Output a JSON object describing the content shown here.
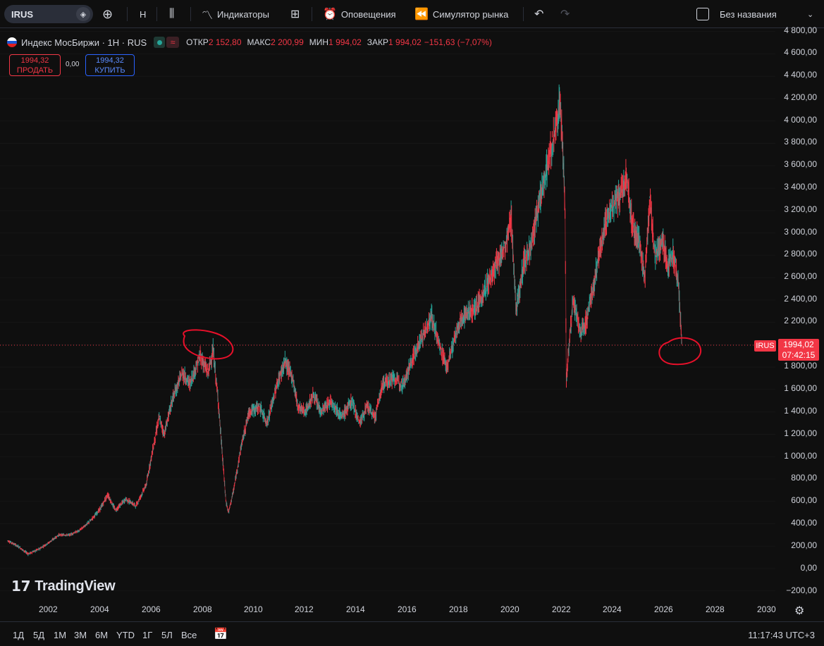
{
  "toolbar": {
    "symbol": "IRUS",
    "interval": "H",
    "indicators_label": "Индикаторы",
    "alerts_label": "Оповещения",
    "replay_label": "Симулятор рынка",
    "layout_name": "Без названия"
  },
  "legend": {
    "title": "Индекс МосБиржи · 1Н · RUS",
    "open_key": "ОТКР",
    "open_val": "2 152,80",
    "high_key": "МАКС",
    "high_val": "2 200,99",
    "low_key": "МИН",
    "low_val": "1 994,02",
    "close_key": "ЗАКР",
    "close_val": "1 994,02",
    "change": "−151,63 (−7,07%)"
  },
  "trade": {
    "sell_price": "1994,32",
    "sell_label": "ПРОДАТЬ",
    "spread": "0,00",
    "buy_price": "1994,32",
    "buy_label": "КУПИТЬ"
  },
  "price_axis": {
    "labels": [
      "4 800,00",
      "4 600,00",
      "4 400,00",
      "4 200,00",
      "4 000,00",
      "3 800,00",
      "3 600,00",
      "3 400,00",
      "3 200,00",
      "3 000,00",
      "2 800,00",
      "2 600,00",
      "2 400,00",
      "2 200,00",
      "1 800,00",
      "1 600,00",
      "1 400,00",
      "1 200,00",
      "1 000,00",
      "800,00",
      "600,00",
      "400,00",
      "200,00",
      "0,00",
      "−200,00"
    ],
    "last_price": "1994,02",
    "countdown": "07:42:15",
    "symbol_tag": "IRUS"
  },
  "time_axis": {
    "years": [
      "2002",
      "2004",
      "2006",
      "2008",
      "2010",
      "2012",
      "2014",
      "2016",
      "2018",
      "2020",
      "2022",
      "2024",
      "2026",
      "2028",
      "2030"
    ]
  },
  "watermark": "TradingView",
  "bottom": {
    "ranges": [
      "1Д",
      "5Д",
      "1М",
      "3М",
      "6М",
      "YTD",
      "1Г",
      "5Л",
      "Все"
    ],
    "clock": "11:17:43 UTC+3"
  },
  "colors": {
    "up": "#26a69a",
    "down": "#f23645",
    "annotation": "#e8102a"
  },
  "chart_data": {
    "type": "line",
    "x_unit": "year",
    "y_range": [
      -200,
      4800
    ],
    "points": [
      [
        2000.4,
        250
      ],
      [
        2000.8,
        200
      ],
      [
        2001.2,
        130
      ],
      [
        2001.6,
        170
      ],
      [
        2002.0,
        230
      ],
      [
        2002.4,
        300
      ],
      [
        2002.8,
        300
      ],
      [
        2003.2,
        340
      ],
      [
        2003.6,
        420
      ],
      [
        2004.0,
        530
      ],
      [
        2004.3,
        660
      ],
      [
        2004.6,
        520
      ],
      [
        2005.0,
        620
      ],
      [
        2005.4,
        560
      ],
      [
        2005.8,
        750
      ],
      [
        2006.0,
        1000
      ],
      [
        2006.3,
        1350
      ],
      [
        2006.5,
        1200
      ],
      [
        2006.8,
        1500
      ],
      [
        2007.2,
        1750
      ],
      [
        2007.5,
        1650
      ],
      [
        2007.9,
        1900
      ],
      [
        2008.2,
        1750
      ],
      [
        2008.4,
        1950
      ],
      [
        2008.6,
        1500
      ],
      [
        2008.9,
        600
      ],
      [
        2009.0,
        500
      ],
      [
        2009.2,
        700
      ],
      [
        2009.5,
        1100
      ],
      [
        2009.8,
        1400
      ],
      [
        2010.2,
        1450
      ],
      [
        2010.5,
        1300
      ],
      [
        2010.9,
        1650
      ],
      [
        2011.2,
        1850
      ],
      [
        2011.5,
        1700
      ],
      [
        2011.7,
        1450
      ],
      [
        2012.0,
        1400
      ],
      [
        2012.3,
        1550
      ],
      [
        2012.6,
        1400
      ],
      [
        2013.0,
        1500
      ],
      [
        2013.4,
        1350
      ],
      [
        2013.8,
        1500
      ],
      [
        2014.1,
        1300
      ],
      [
        2014.4,
        1450
      ],
      [
        2014.7,
        1350
      ],
      [
        2015.0,
        1650
      ],
      [
        2015.4,
        1700
      ],
      [
        2015.8,
        1650
      ],
      [
        2016.2,
        1900
      ],
      [
        2016.6,
        2100
      ],
      [
        2016.9,
        2250
      ],
      [
        2017.2,
        2000
      ],
      [
        2017.5,
        1800
      ],
      [
        2017.8,
        2050
      ],
      [
        2018.1,
        2250
      ],
      [
        2018.4,
        2300
      ],
      [
        2018.7,
        2350
      ],
      [
        2019.0,
        2500
      ],
      [
        2019.4,
        2700
      ],
      [
        2019.8,
        2900
      ],
      [
        2020.0,
        3150
      ],
      [
        2020.2,
        2300
      ],
      [
        2020.5,
        2750
      ],
      [
        2020.8,
        2900
      ],
      [
        2021.2,
        3400
      ],
      [
        2021.5,
        3700
      ],
      [
        2021.8,
        4000
      ],
      [
        2021.9,
        4200
      ],
      [
        2022.0,
        3800
      ],
      [
        2022.1,
        3200
      ],
      [
        2022.15,
        1700
      ],
      [
        2022.4,
        2400
      ],
      [
        2022.7,
        2100
      ],
      [
        2022.9,
        2200
      ],
      [
        2023.2,
        2500
      ],
      [
        2023.5,
        2900
      ],
      [
        2023.8,
        3200
      ],
      [
        2024.0,
        3250
      ],
      [
        2024.3,
        3350
      ],
      [
        2024.5,
        3500
      ],
      [
        2024.7,
        3100
      ],
      [
        2025.0,
        2900
      ],
      [
        2025.2,
        2600
      ],
      [
        2025.4,
        3300
      ],
      [
        2025.6,
        2800
      ],
      [
        2025.9,
        2950
      ],
      [
        2026.1,
        2700
      ],
      [
        2026.3,
        2800
      ],
      [
        2026.5,
        2600
      ],
      [
        2026.6,
        2200
      ],
      [
        2026.65,
        1994
      ]
    ]
  }
}
